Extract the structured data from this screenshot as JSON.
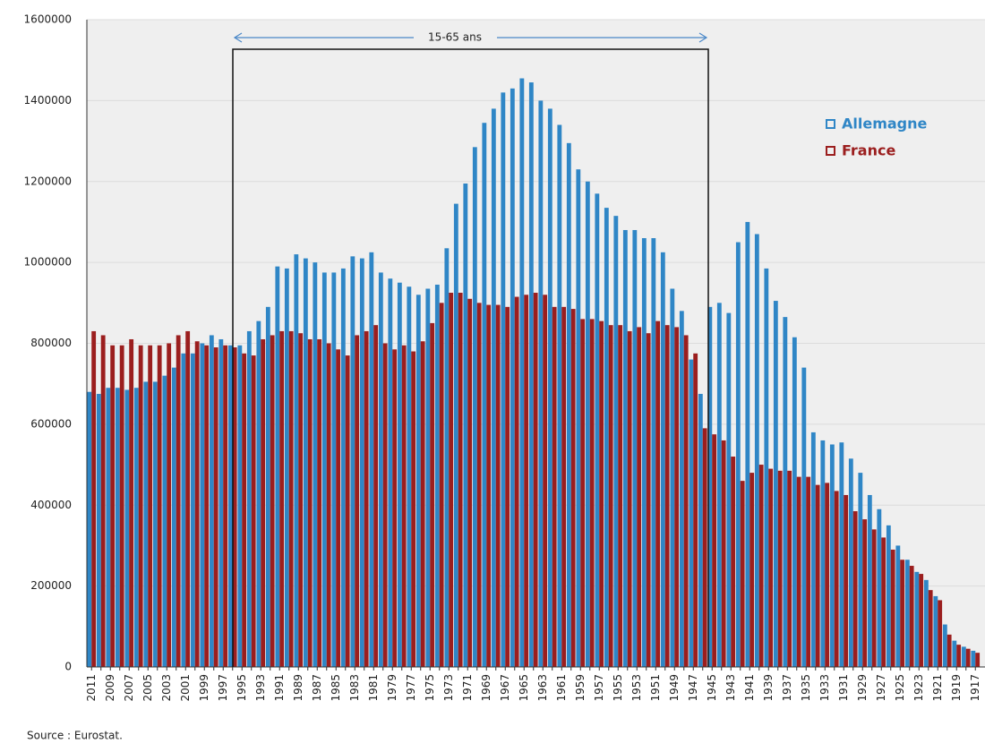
{
  "chart_data": {
    "type": "bar",
    "annotation": "15-65 ans",
    "source": "Source : Eurostat.",
    "categories": [
      "2011",
      null,
      "2009",
      null,
      "2007",
      null,
      "2005",
      null,
      "2003",
      null,
      "2001",
      null,
      "1999",
      null,
      "1997",
      null,
      "1995",
      null,
      "1993",
      null,
      "1991",
      null,
      "1989",
      null,
      "1987",
      null,
      "1985",
      null,
      "1983",
      null,
      "1981",
      null,
      "1979",
      null,
      "1977",
      null,
      "1975",
      null,
      "1973",
      null,
      "1971",
      null,
      "1969",
      null,
      "1967",
      null,
      "1965",
      null,
      "1963",
      null,
      "1961",
      null,
      "1959",
      null,
      "1957",
      null,
      "1955",
      null,
      "1953",
      null,
      "1951",
      null,
      "1949",
      null,
      "1947",
      null,
      "1945",
      null,
      "1943",
      null,
      "1941",
      null,
      "1939",
      null,
      "1937",
      null,
      "1935",
      null,
      "1933",
      null,
      "1931",
      null,
      "1929",
      null,
      "1927",
      null,
      "1925",
      null,
      "1923",
      null,
      "1921",
      null,
      "1919",
      null,
      "1917"
    ],
    "series": [
      {
        "name": "Allemagne",
        "color": "#2f86c6",
        "values": [
          680000,
          675000,
          690000,
          690000,
          685000,
          690000,
          705000,
          705000,
          720000,
          740000,
          775000,
          775000,
          800000,
          820000,
          810000,
          795000,
          795000,
          830000,
          855000,
          890000,
          990000,
          985000,
          1020000,
          1010000,
          1000000,
          975000,
          975000,
          985000,
          1015000,
          1010000,
          1025000,
          975000,
          960000,
          950000,
          940000,
          920000,
          935000,
          945000,
          1035000,
          1145000,
          1195000,
          1285000,
          1345000,
          1380000,
          1420000,
          1430000,
          1455000,
          1445000,
          1400000,
          1380000,
          1340000,
          1295000,
          1230000,
          1200000,
          1170000,
          1135000,
          1115000,
          1080000,
          1080000,
          1060000,
          1060000,
          1025000,
          935000,
          880000,
          760000,
          675000,
          890000,
          900000,
          875000,
          1050000,
          1100000,
          1070000,
          985000,
          905000,
          865000,
          815000,
          740000,
          580000,
          560000,
          550000,
          555000,
          515000,
          480000,
          425000,
          390000,
          350000,
          300000,
          265000,
          235000,
          215000,
          175000,
          105000,
          65000,
          50000,
          40000
        ]
      },
      {
        "name": "France",
        "color": "#9b1e1e",
        "values": [
          830000,
          820000,
          795000,
          795000,
          810000,
          795000,
          795000,
          795000,
          800000,
          820000,
          830000,
          805000,
          795000,
          790000,
          795000,
          790000,
          775000,
          770000,
          810000,
          820000,
          830000,
          830000,
          825000,
          810000,
          810000,
          800000,
          785000,
          770000,
          820000,
          830000,
          845000,
          800000,
          785000,
          795000,
          780000,
          805000,
          850000,
          900000,
          925000,
          925000,
          910000,
          900000,
          895000,
          895000,
          890000,
          915000,
          920000,
          925000,
          920000,
          890000,
          890000,
          885000,
          860000,
          860000,
          855000,
          845000,
          845000,
          830000,
          840000,
          825000,
          855000,
          845000,
          840000,
          820000,
          775000,
          590000,
          575000,
          560000,
          520000,
          460000,
          480000,
          500000,
          490000,
          485000,
          485000,
          470000,
          470000,
          450000,
          455000,
          435000,
          425000,
          385000,
          365000,
          340000,
          320000,
          290000,
          265000,
          250000,
          230000,
          190000,
          165000,
          80000,
          55000,
          45000,
          35000
        ]
      }
    ],
    "ylim": [
      0,
      1600000
    ],
    "yticks": [
      0,
      200000,
      400000,
      600000,
      800000,
      1000000,
      1200000,
      1400000,
      1600000
    ],
    "grid": true
  }
}
